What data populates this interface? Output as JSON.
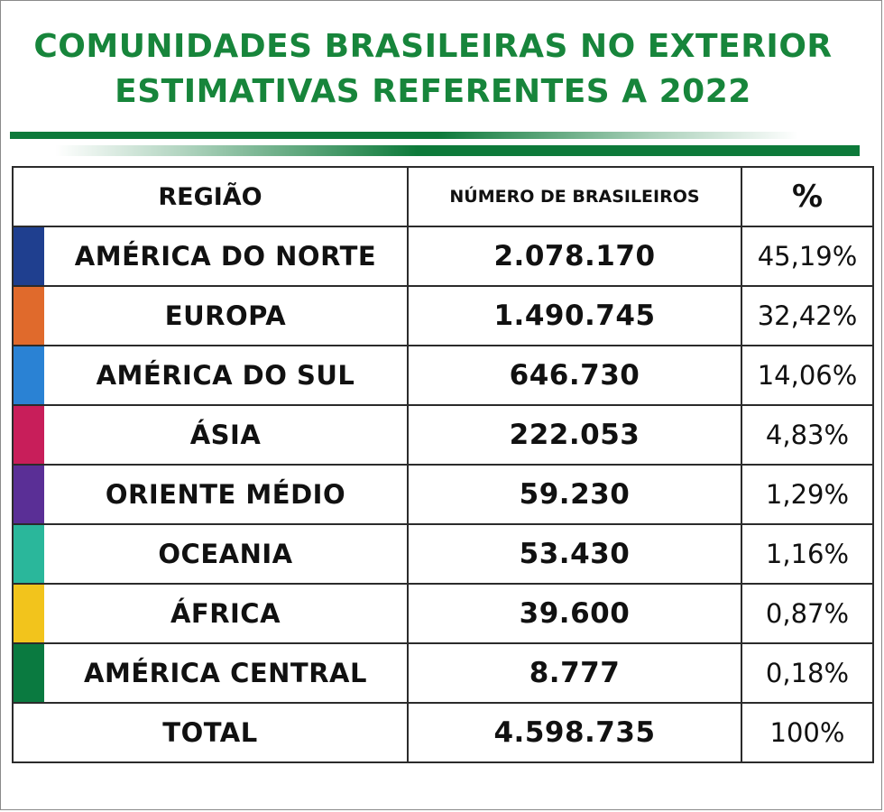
{
  "title": {
    "line1": "COMUNIDADES BRASILEIRAS NO EXTERIOR",
    "line2": "ESTIMATIVAS REFERENTES A 2022"
  },
  "table": {
    "headers": {
      "region": "REGIÃO",
      "count": "NÚMERO DE BRASILEIROS",
      "percent": "%"
    },
    "rows": [
      {
        "region": "AMÉRICA DO NORTE",
        "count": "2.078.170",
        "percent": "45,19%",
        "color": "#1f3f8f"
      },
      {
        "region": "EUROPA",
        "count": "1.490.745",
        "percent": "32,42%",
        "color": "#e06a2c"
      },
      {
        "region": "AMÉRICA DO SUL",
        "count": "646.730",
        "percent": "14,06%",
        "color": "#2a82d4"
      },
      {
        "region": "ÁSIA",
        "count": "222.053",
        "percent": "4,83%",
        "color": "#c81e5a"
      },
      {
        "region": "ORIENTE MÉDIO",
        "count": "59.230",
        "percent": "1,29%",
        "color": "#5a2f96"
      },
      {
        "region": "OCEANIA",
        "count": "53.430",
        "percent": "1,16%",
        "color": "#2ab79b"
      },
      {
        "region": "ÁFRICA",
        "count": "39.600",
        "percent": "0,87%",
        "color": "#f2c41c"
      },
      {
        "region": "AMÉRICA CENTRAL",
        "count": "8.777",
        "percent": "0,18%",
        "color": "#0a7a40"
      }
    ],
    "total": {
      "label": "TOTAL",
      "count": "4.598.735",
      "percent": "100%"
    }
  },
  "colors": {
    "title_green": "#17853b",
    "rule_green": "#0d7a3a"
  }
}
